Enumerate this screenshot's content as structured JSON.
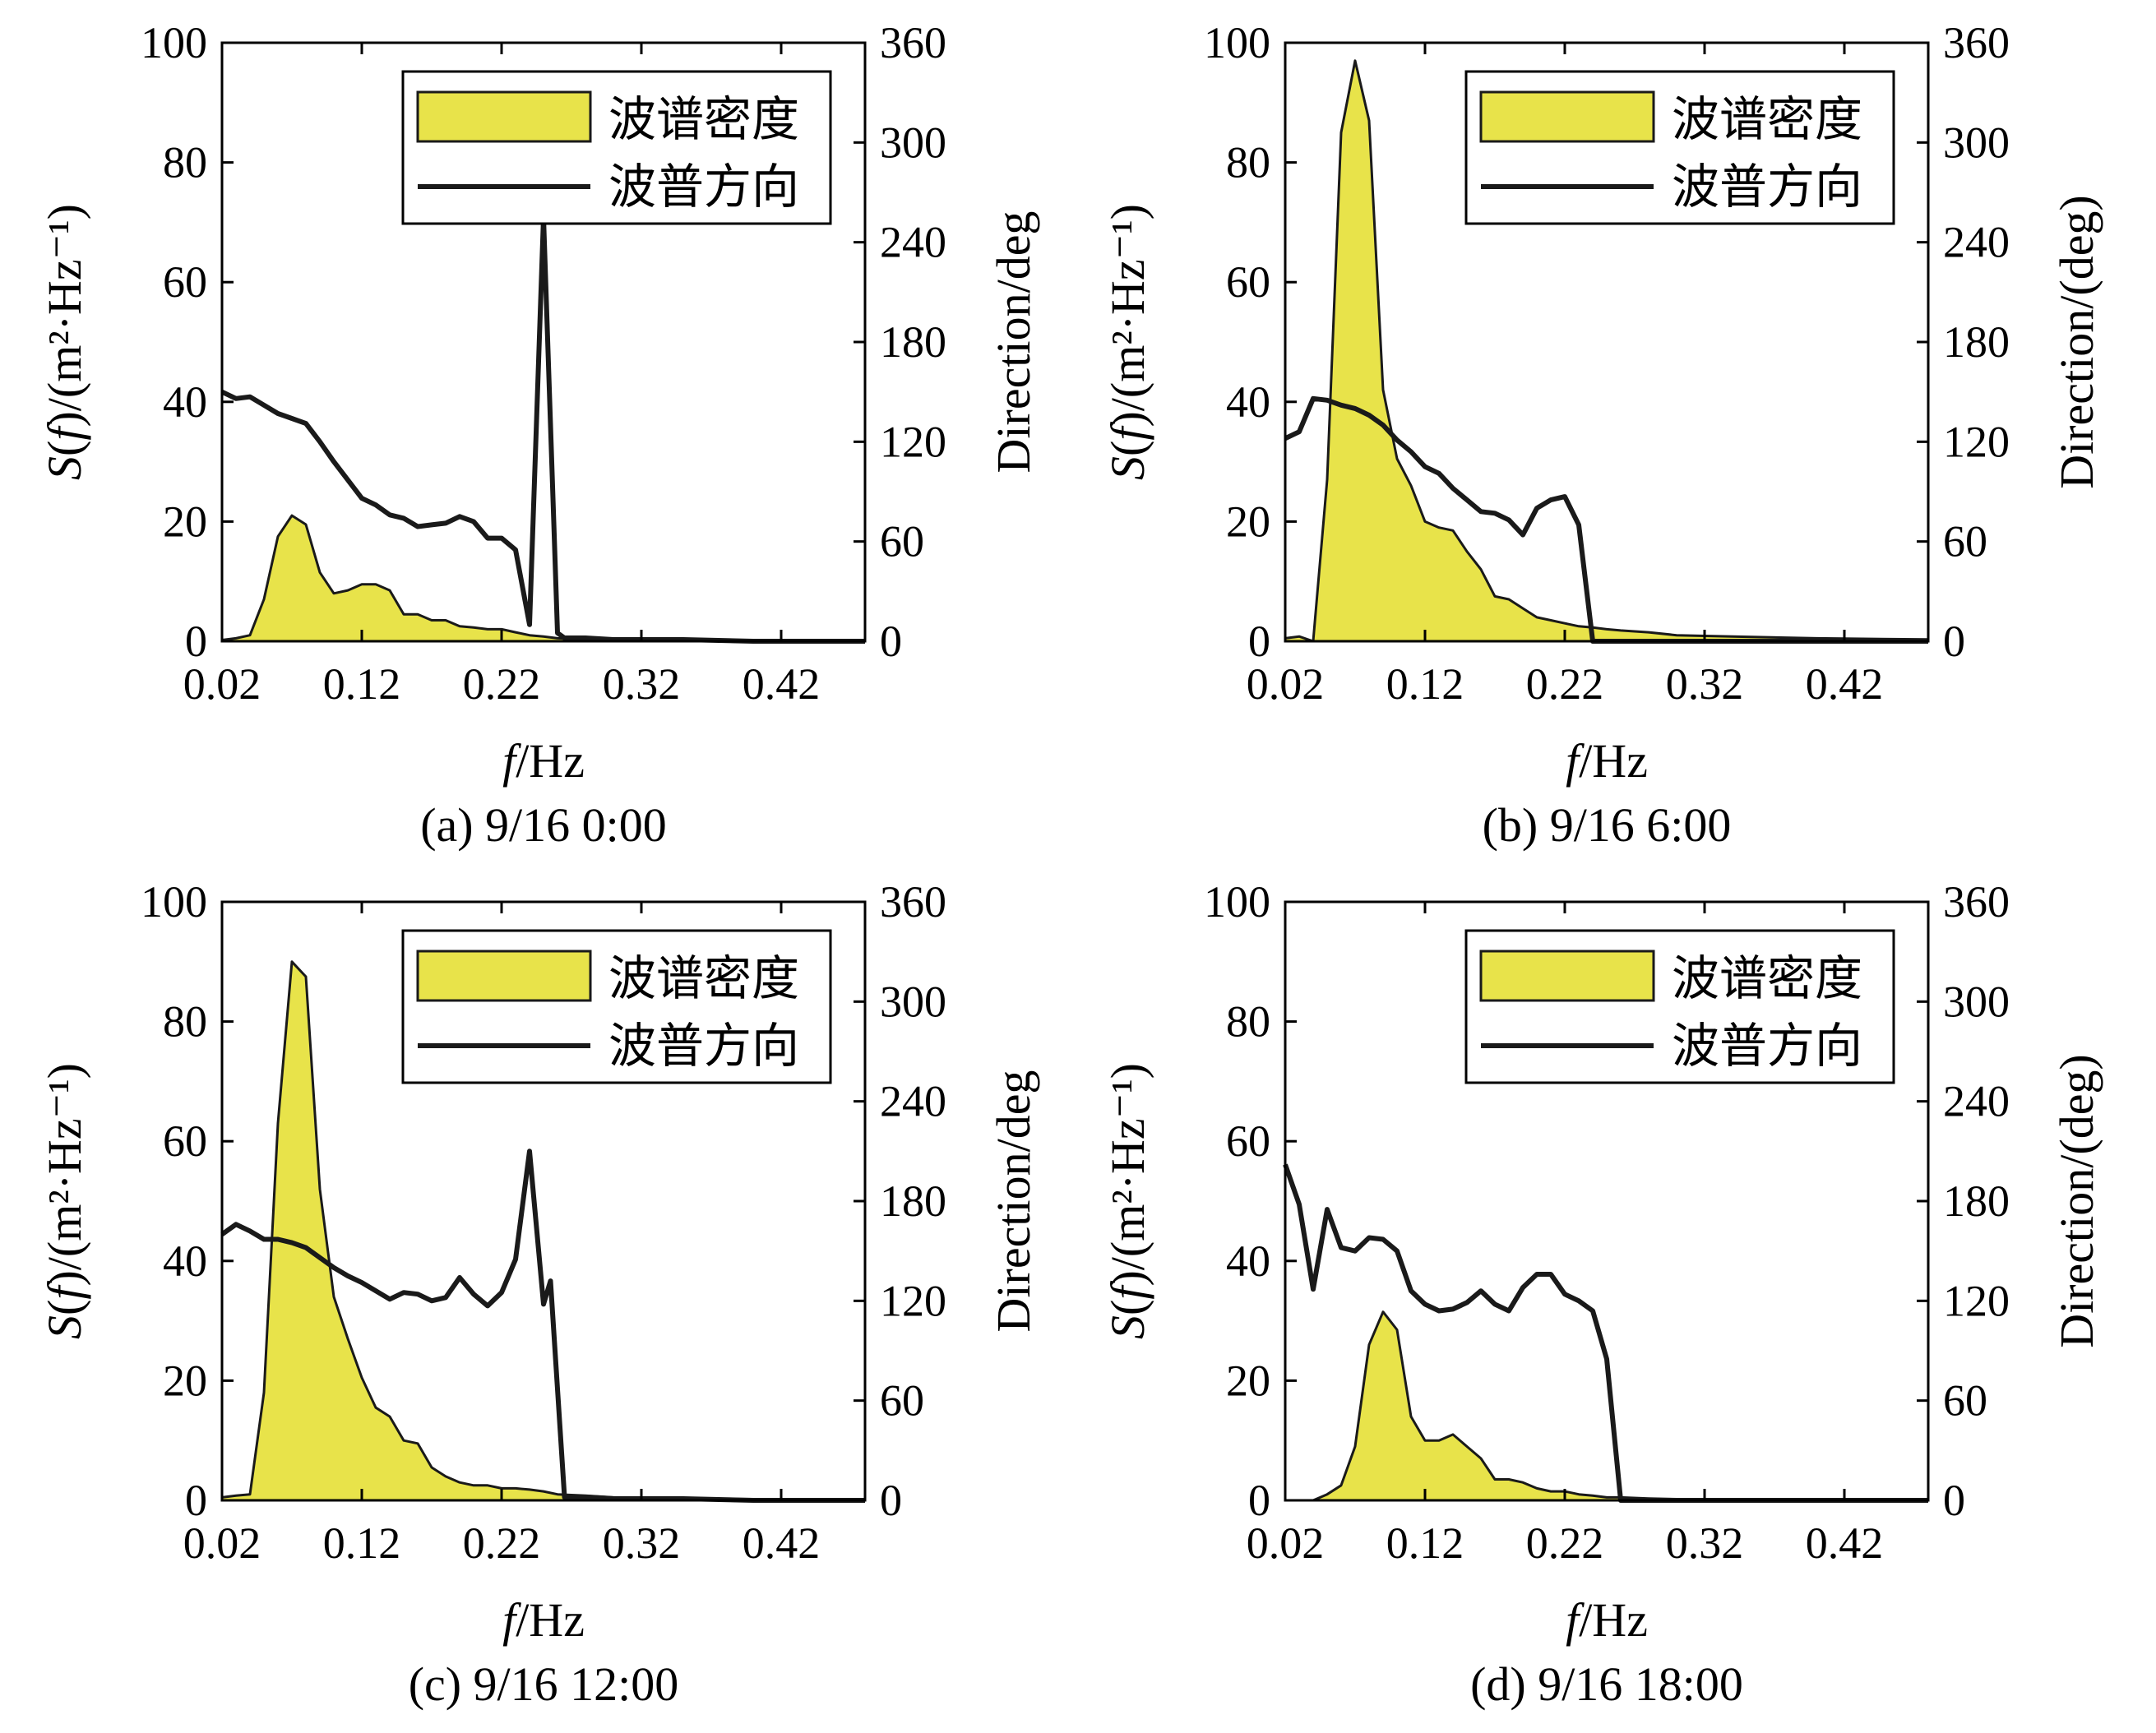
{
  "colors": {
    "density_fill": "#e8e34a",
    "density_stroke": "#1a1a1a",
    "direction_line": "#1a1a1a"
  },
  "legend": {
    "density": "波谱密度",
    "direction": "波普方向"
  },
  "chart_data": [
    {
      "type": "area",
      "caption": "(a) 9/16 0:00",
      "xlabel_italic": "f",
      "xlabel_rest": "/Hz",
      "ylabel_left_italic": "S",
      "ylabel_left_f": "f",
      "ylabel_left_rest": "/(m²·Hz⁻¹)",
      "ylabel_right": "Direction/deg",
      "xlim": [
        0.02,
        0.48
      ],
      "ylim_left": [
        0,
        100
      ],
      "ylim_right": [
        0,
        360
      ],
      "xticks": [
        "0.02",
        "0.12",
        "0.22",
        "0.32",
        "0.42"
      ],
      "yticks_left": [
        "0",
        "20",
        "40",
        "60",
        "80",
        "100"
      ],
      "yticks_right": [
        "0",
        "60",
        "120",
        "180",
        "240",
        "300",
        "360"
      ],
      "density": {
        "x": [
          0.02,
          0.03,
          0.04,
          0.05,
          0.06,
          0.07,
          0.08,
          0.09,
          0.1,
          0.11,
          0.12,
          0.13,
          0.14,
          0.15,
          0.16,
          0.17,
          0.18,
          0.19,
          0.2,
          0.21,
          0.22,
          0.23,
          0.24,
          0.25,
          0.26,
          0.28,
          0.3,
          0.34,
          0.4,
          0.48
        ],
        "y": [
          0.2,
          0.5,
          1.0,
          7.0,
          17.5,
          21.0,
          19.5,
          11.5,
          8.0,
          8.5,
          9.5,
          9.5,
          8.5,
          4.5,
          4.5,
          3.5,
          3.5,
          2.5,
          2.3,
          2.0,
          2.0,
          1.5,
          1.0,
          0.8,
          0.5,
          0.3,
          0.2,
          0.2,
          0.1,
          0.1
        ]
      },
      "direction": {
        "x": [
          0.02,
          0.03,
          0.04,
          0.05,
          0.06,
          0.07,
          0.08,
          0.09,
          0.1,
          0.11,
          0.12,
          0.13,
          0.14,
          0.15,
          0.16,
          0.17,
          0.18,
          0.19,
          0.2,
          0.21,
          0.22,
          0.23,
          0.24,
          0.25,
          0.26,
          0.265,
          0.28,
          0.3,
          0.35,
          0.4,
          0.48
        ],
        "y": [
          150,
          146,
          147,
          142,
          137,
          134,
          131,
          120,
          108,
          97,
          86,
          82,
          76,
          74,
          69,
          70,
          71,
          75,
          72,
          62,
          62,
          55,
          10,
          255,
          5,
          2,
          2,
          1,
          1,
          0,
          0
        ]
      }
    },
    {
      "type": "area",
      "caption": "(b) 9/16 6:00",
      "xlabel_italic": "f",
      "xlabel_rest": "/Hz",
      "ylabel_left_italic": "S",
      "ylabel_left_f": "f",
      "ylabel_left_rest": "/(m²·Hz⁻¹)",
      "ylabel_right": "Direction/(deg)",
      "xlim": [
        0.02,
        0.48
      ],
      "ylim_left": [
        0,
        100
      ],
      "ylim_right": [
        0,
        360
      ],
      "xticks": [
        "0.02",
        "0.12",
        "0.22",
        "0.32",
        "0.42"
      ],
      "yticks_left": [
        "0",
        "20",
        "40",
        "60",
        "80",
        "100"
      ],
      "yticks_right": [
        "0",
        "60",
        "120",
        "180",
        "240",
        "300",
        "360"
      ],
      "density": {
        "x": [
          0.02,
          0.03,
          0.04,
          0.05,
          0.06,
          0.07,
          0.08,
          0.09,
          0.1,
          0.11,
          0.12,
          0.13,
          0.14,
          0.15,
          0.16,
          0.17,
          0.18,
          0.19,
          0.2,
          0.21,
          0.22,
          0.23,
          0.24,
          0.25,
          0.26,
          0.28,
          0.3,
          0.34,
          0.4,
          0.48
        ],
        "y": [
          0.5,
          0.8,
          0.0,
          27.0,
          85.0,
          97.0,
          87.0,
          42.0,
          30.5,
          26.0,
          20.0,
          19.0,
          18.5,
          15.0,
          12.0,
          7.5,
          7.0,
          5.5,
          4.0,
          3.5,
          3.0,
          2.5,
          2.3,
          2.0,
          1.8,
          1.5,
          1.0,
          0.8,
          0.5,
          0.3
        ]
      },
      "direction": {
        "x": [
          0.02,
          0.03,
          0.04,
          0.05,
          0.06,
          0.07,
          0.08,
          0.09,
          0.1,
          0.11,
          0.12,
          0.13,
          0.14,
          0.15,
          0.16,
          0.17,
          0.18,
          0.19,
          0.2,
          0.21,
          0.22,
          0.23,
          0.24,
          0.25,
          0.3,
          0.4,
          0.48
        ],
        "y": [
          122,
          126,
          146,
          145,
          142,
          140,
          136,
          130,
          121,
          114,
          105,
          101,
          92,
          85,
          78,
          77,
          73,
          64,
          80,
          85,
          87,
          70,
          0,
          0,
          0,
          0,
          0
        ]
      }
    },
    {
      "type": "area",
      "caption": "(c) 9/16 12:00",
      "xlabel_italic": "f",
      "xlabel_rest": "/Hz",
      "ylabel_left_italic": "S",
      "ylabel_left_f": "f",
      "ylabel_left_rest": "/(m²·Hz⁻¹)",
      "ylabel_right": "Direction/deg",
      "xlim": [
        0.02,
        0.48
      ],
      "ylim_left": [
        0,
        100
      ],
      "ylim_right": [
        0,
        360
      ],
      "xticks": [
        "0.02",
        "0.12",
        "0.22",
        "0.32",
        "0.42"
      ],
      "yticks_left": [
        "0",
        "20",
        "40",
        "60",
        "80",
        "100"
      ],
      "yticks_right": [
        "0",
        "60",
        "120",
        "180",
        "240",
        "300",
        "360"
      ],
      "density": {
        "x": [
          0.02,
          0.03,
          0.04,
          0.05,
          0.06,
          0.07,
          0.08,
          0.09,
          0.1,
          0.11,
          0.12,
          0.13,
          0.14,
          0.15,
          0.16,
          0.17,
          0.18,
          0.19,
          0.2,
          0.21,
          0.22,
          0.23,
          0.24,
          0.25,
          0.26,
          0.28,
          0.3,
          0.34,
          0.4,
          0.48
        ],
        "y": [
          0.5,
          0.8,
          1.0,
          18.0,
          63.0,
          90.0,
          87.5,
          52.0,
          34.0,
          27.0,
          20.5,
          15.5,
          14.0,
          10.0,
          9.5,
          5.5,
          4.0,
          3.0,
          2.5,
          2.5,
          2.0,
          2.0,
          1.8,
          1.5,
          1.0,
          0.8,
          0.5,
          0.3,
          0.2,
          0.1
        ]
      },
      "direction": {
        "x": [
          0.02,
          0.03,
          0.04,
          0.05,
          0.06,
          0.07,
          0.08,
          0.09,
          0.1,
          0.11,
          0.12,
          0.13,
          0.14,
          0.15,
          0.16,
          0.17,
          0.18,
          0.19,
          0.2,
          0.21,
          0.22,
          0.23,
          0.24,
          0.25,
          0.255,
          0.265,
          0.28,
          0.3,
          0.35,
          0.4,
          0.48
        ],
        "y": [
          160,
          166,
          162,
          157,
          157,
          155,
          152,
          146,
          140,
          135,
          131,
          126,
          121,
          125,
          124,
          120,
          122,
          134,
          124,
          117,
          125,
          145,
          210,
          118,
          132,
          2,
          2,
          1,
          1,
          0,
          0
        ]
      }
    },
    {
      "type": "area",
      "caption": "(d) 9/16 18:00",
      "xlabel_italic": "f",
      "xlabel_rest": "/Hz",
      "ylabel_left_italic": "S",
      "ylabel_left_f": "f",
      "ylabel_left_rest": "/(m²·Hz⁻¹)",
      "ylabel_right": "Direction/(deg)",
      "xlim": [
        0.02,
        0.48
      ],
      "ylim_left": [
        0,
        100
      ],
      "ylim_right": [
        0,
        360
      ],
      "xticks": [
        "0.02",
        "0.12",
        "0.22",
        "0.32",
        "0.42"
      ],
      "yticks_left": [
        "0",
        "20",
        "40",
        "60",
        "80",
        "100"
      ],
      "yticks_right": [
        "0",
        "60",
        "120",
        "180",
        "240",
        "300",
        "360"
      ],
      "density": {
        "x": [
          0.02,
          0.03,
          0.04,
          0.05,
          0.06,
          0.07,
          0.08,
          0.09,
          0.1,
          0.11,
          0.12,
          0.13,
          0.14,
          0.15,
          0.16,
          0.17,
          0.18,
          0.19,
          0.2,
          0.21,
          0.22,
          0.23,
          0.24,
          0.25,
          0.26,
          0.28,
          0.3,
          0.34,
          0.4,
          0.48
        ],
        "y": [
          0.0,
          0.0,
          0.0,
          1.0,
          2.5,
          9.0,
          26.0,
          31.5,
          28.5,
          14.0,
          10.0,
          10.0,
          11.0,
          9.0,
          7.0,
          3.5,
          3.5,
          3.0,
          2.0,
          1.5,
          1.5,
          1.0,
          0.8,
          0.5,
          0.5,
          0.3,
          0.2,
          0.1,
          0.1,
          0.0
        ]
      },
      "direction": {
        "x": [
          0.02,
          0.03,
          0.04,
          0.05,
          0.06,
          0.07,
          0.08,
          0.09,
          0.1,
          0.11,
          0.12,
          0.13,
          0.14,
          0.15,
          0.16,
          0.17,
          0.18,
          0.19,
          0.2,
          0.21,
          0.22,
          0.23,
          0.24,
          0.25,
          0.26,
          0.28,
          0.3,
          0.35,
          0.4,
          0.48
        ],
        "y": [
          202,
          178,
          127,
          175,
          152,
          150,
          158,
          157,
          150,
          126,
          118,
          114,
          115,
          119,
          126,
          118,
          114,
          128,
          136,
          136,
          124,
          120,
          114,
          85,
          0,
          0,
          0,
          0,
          0,
          0
        ]
      }
    }
  ]
}
